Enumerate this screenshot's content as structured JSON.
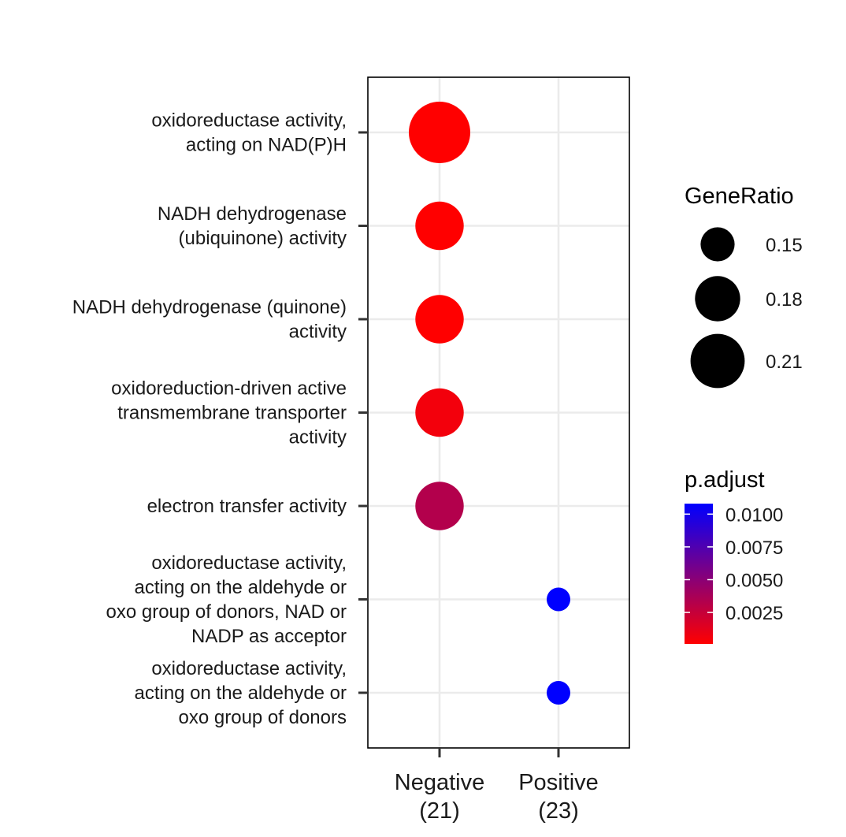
{
  "chart_data": {
    "type": "scatter",
    "title": "",
    "xlabel": "",
    "ylabel": "",
    "grid": true,
    "legend_placement": "right",
    "x_categories": [
      {
        "line1": "Negative",
        "line2": "(21)"
      },
      {
        "line1": "Positive",
        "line2": "(23)"
      }
    ],
    "y_categories": [
      {
        "lines": [
          "oxidoreductase activity,",
          "acting on NAD(P)H"
        ]
      },
      {
        "lines": [
          "NADH dehydrogenase",
          "(ubiquinone) activity"
        ]
      },
      {
        "lines": [
          "NADH dehydrogenase (quinone)",
          "activity"
        ]
      },
      {
        "lines": [
          "oxidoreduction-driven active",
          "transmembrane transporter",
          "activity"
        ]
      },
      {
        "lines": [
          "electron transfer activity"
        ]
      },
      {
        "lines": [
          "oxidoreductase activity,",
          "acting on the aldehyde or",
          "oxo group of donors, NAD or",
          "NADP as acceptor"
        ]
      },
      {
        "lines": [
          "oxidoreductase activity,",
          "acting on the aldehyde or",
          "oxo group of donors"
        ]
      }
    ],
    "points": [
      {
        "x": 0,
        "y": 0,
        "gene_ratio": 0.238,
        "p_adjust": 0.0001
      },
      {
        "x": 0,
        "y": 1,
        "gene_ratio": 0.19,
        "p_adjust": 0.0001
      },
      {
        "x": 0,
        "y": 2,
        "gene_ratio": 0.19,
        "p_adjust": 0.0001
      },
      {
        "x": 0,
        "y": 3,
        "gene_ratio": 0.19,
        "p_adjust": 0.0006
      },
      {
        "x": 0,
        "y": 4,
        "gene_ratio": 0.19,
        "p_adjust": 0.0033
      },
      {
        "x": 1,
        "y": 5,
        "gene_ratio": 0.13,
        "p_adjust": 0.0108
      },
      {
        "x": 1,
        "y": 6,
        "gene_ratio": 0.13,
        "p_adjust": 0.0108
      }
    ],
    "size_legend": {
      "title": "GeneRatio",
      "entries": [
        {
          "label": "0.15",
          "value": 0.15
        },
        {
          "label": "0.18",
          "value": 0.18
        },
        {
          "label": "0.21",
          "value": 0.21
        }
      ]
    },
    "color_legend": {
      "title": "p.adjust",
      "range": [
        0.0001,
        0.0108
      ],
      "low_color": "#ff0000",
      "high_color": "#0000ff",
      "ticks": [
        {
          "label": "0.0100",
          "value": 0.01
        },
        {
          "label": "0.0075",
          "value": 0.0075
        },
        {
          "label": "0.0050",
          "value": 0.005
        },
        {
          "label": "0.0025",
          "value": 0.0025
        }
      ]
    }
  }
}
